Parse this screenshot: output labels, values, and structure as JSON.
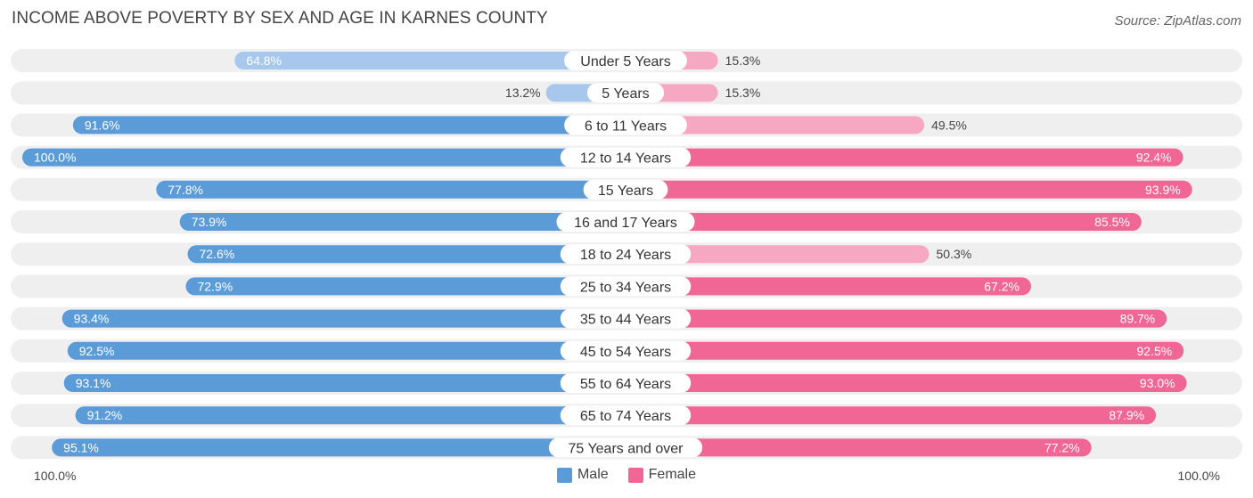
{
  "title": "INCOME ABOVE POVERTY BY SEX AND AGE IN KARNES COUNTY",
  "source": "Source: ZipAtlas.com",
  "colors": {
    "male_strong": "#5b9bd8",
    "male_light": "#a7c8ec",
    "female_strong": "#f06695",
    "female_light": "#f6a8c3",
    "track": "#efefef"
  },
  "legend": {
    "male": "Male",
    "female": "Female"
  },
  "axis": {
    "left_label": "100.0%",
    "right_label": "100.0%"
  },
  "chart_data": {
    "type": "bar",
    "orientation": "horizontal-diverging",
    "title": "INCOME ABOVE POVERTY BY SEX AND AGE IN KARNES COUNTY",
    "xlim": [
      0,
      100
    ],
    "categories": [
      "Under 5 Years",
      "5 Years",
      "6 to 11 Years",
      "12 to 14 Years",
      "15 Years",
      "16 and 17 Years",
      "18 to 24 Years",
      "25 to 34 Years",
      "35 to 44 Years",
      "45 to 54 Years",
      "55 to 64 Years",
      "65 to 74 Years",
      "75 Years and over"
    ],
    "series": [
      {
        "name": "Male",
        "values": [
          64.8,
          13.2,
          91.6,
          100.0,
          77.8,
          73.9,
          72.6,
          72.9,
          93.4,
          92.5,
          93.1,
          91.2,
          95.1
        ],
        "labels": [
          "64.8%",
          "13.2%",
          "91.6%",
          "100.0%",
          "77.8%",
          "73.9%",
          "72.6%",
          "72.9%",
          "93.4%",
          "92.5%",
          "93.1%",
          "91.2%",
          "95.1%"
        ]
      },
      {
        "name": "Female",
        "values": [
          15.3,
          15.3,
          49.5,
          92.4,
          93.9,
          85.5,
          50.3,
          67.2,
          89.7,
          92.5,
          93.0,
          87.9,
          77.2
        ],
        "labels": [
          "15.3%",
          "15.3%",
          "49.5%",
          "92.4%",
          "93.9%",
          "85.5%",
          "50.3%",
          "67.2%",
          "89.7%",
          "92.5%",
          "93.0%",
          "87.9%",
          "77.2%"
        ]
      }
    ]
  }
}
